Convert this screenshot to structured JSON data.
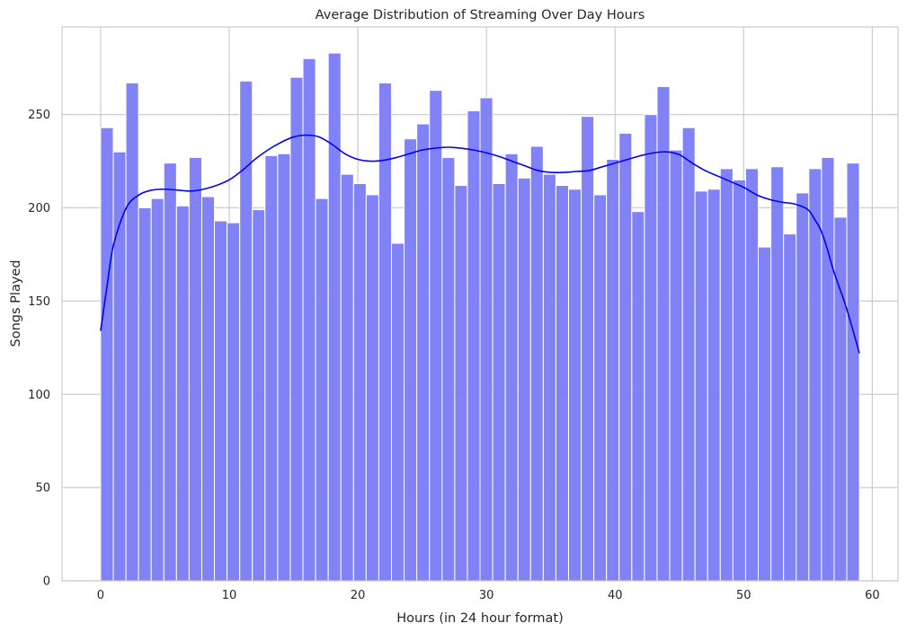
{
  "chart_data": {
    "type": "bar",
    "title": "Average Distribution of Streaming Over Day Hours",
    "xlabel": "Hours (in 24 hour format)",
    "ylabel": "Songs Played",
    "xlim": [
      -3,
      62
    ],
    "ylim": [
      0,
      297
    ],
    "x_ticks": [
      0,
      10,
      20,
      30,
      40,
      50,
      60
    ],
    "y_ticks": [
      0,
      50,
      100,
      150,
      200,
      250
    ],
    "grid": true,
    "bin_range": [
      0,
      59
    ],
    "bar_color": "#7b7bf7",
    "kde_color": "#0000ff",
    "values": [
      243,
      230,
      267,
      200,
      205,
      224,
      201,
      227,
      206,
      193,
      192,
      268,
      199,
      228,
      229,
      270,
      280,
      205,
      283,
      218,
      213,
      207,
      267,
      181,
      237,
      245,
      263,
      227,
      212,
      252,
      259,
      213,
      229,
      216,
      233,
      218,
      212,
      210,
      249,
      207,
      226,
      240,
      198,
      250,
      265,
      231,
      243,
      209,
      210,
      221,
      215,
      221,
      179,
      222,
      186,
      208,
      221,
      227,
      195,
      224
    ],
    "kde": {
      "x": [
        0,
        0.5,
        1,
        2,
        3,
        4,
        5,
        6,
        7,
        8,
        9,
        10,
        11,
        12,
        13,
        14,
        15,
        16,
        17,
        18,
        19,
        20,
        21,
        22,
        23,
        24,
        25,
        26,
        27,
        28,
        29,
        30,
        31,
        32,
        33,
        34,
        35,
        36,
        37,
        38,
        39,
        40,
        41,
        42,
        43,
        44,
        45,
        46,
        47,
        48,
        49,
        50,
        51,
        52,
        53,
        54,
        55,
        55.5,
        56,
        56.5,
        57,
        58,
        59
      ],
      "y": [
        134,
        158,
        180,
        200,
        207,
        209.5,
        210,
        209.5,
        209,
        210,
        212,
        215,
        220,
        226,
        231,
        235,
        238,
        239,
        238,
        234,
        229,
        226,
        225,
        225.5,
        227,
        229,
        231,
        232,
        232.5,
        232,
        231,
        229.5,
        227.5,
        225,
        222.5,
        220,
        219,
        219,
        219.5,
        220,
        222,
        224,
        226,
        228,
        229.5,
        230,
        228.5,
        224,
        220,
        217,
        214,
        211,
        207,
        204.5,
        203,
        202,
        199,
        194,
        188,
        178,
        166,
        146,
        122
      ]
    }
  }
}
